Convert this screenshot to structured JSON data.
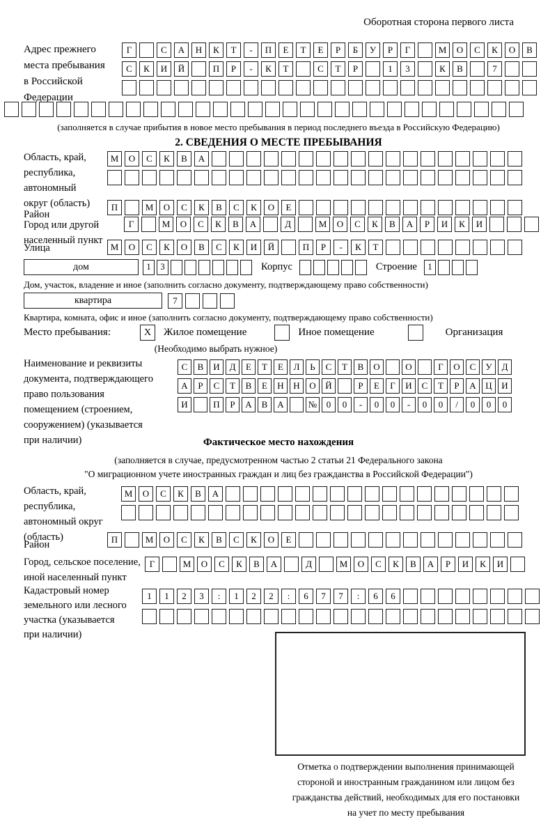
{
  "page": {
    "header_note": "Оборотная сторона первого листа"
  },
  "prev_address": {
    "label_lines": [
      "Адрес прежнего",
      "места пребывания",
      "в Российской",
      "Федерации"
    ],
    "rows": [
      "Г САНКТ-ПЕТЕРБУРГ МОСКОВ",
      "СКИЙ ПР-КТ СТР 13 КВ 7  ",
      "                        "
    ],
    "overflow_row": "                              ",
    "footnote": "(заполняется в случае прибытия в новое место пребывания в период последнего въезда в Российскую Федерацию)"
  },
  "section2": {
    "title": "2. СВЕДЕНИЯ О МЕСТЕ ПРЕБЫВАНИЯ",
    "oblast": {
      "label_lines": [
        "Область, край,",
        "республика,",
        "автономный",
        "округ (область)"
      ],
      "rows": [
        "МОСКВА                  ",
        "                        "
      ]
    },
    "raion": {
      "label": "Район",
      "row": "П МОСКВСКОЕ             "
    },
    "gorod": {
      "label_lines": [
        "Город или другой",
        "населенный пункт"
      ],
      "row": "Г МОСКВА Д МОСКВАРИКИ   "
    },
    "ulitsa": {
      "label": "Улица",
      "row": "МОСКОВСКИЙ ПР-КТ        "
    },
    "dom": {
      "box_label": "дом",
      "cells": "13      ",
      "korpus_label": "Корпус",
      "korpus_cells": "     ",
      "stroenie_label": "Строение",
      "stroenie_cells": "1   ",
      "caption": "Дом, участок, владение и иное (заполнить согласно документу, подтверждающему право собственности)"
    },
    "kvartira": {
      "box_label": "квартира",
      "cells": "7   ",
      "caption": "Квартира, комната, офис и иное (заполнить согласно документу, подтверждающему право собственности)"
    },
    "stay_type": {
      "label": "Место пребывания:",
      "options": [
        {
          "label": "Жилое помещение",
          "mark": "X"
        },
        {
          "label": "Иное помещение",
          "mark": ""
        },
        {
          "label": "Организация",
          "mark": ""
        }
      ],
      "hint": "(Необходимо выбрать нужное)"
    },
    "doc": {
      "label_lines": [
        "Наименование и реквизиты",
        "документа, подтверждающего",
        "право пользования",
        "помещением (строением,",
        "сооружением) (указывается",
        "при наличии)"
      ],
      "rows": [
        "СВИДЕТЕЛЬСТВО О ГОСУД",
        "АРСТВЕННОЙ РЕГИСТРАЦИ",
        "И ПРАВА №00-00-00/000"
      ]
    }
  },
  "fact": {
    "title": "Фактическое место нахождения",
    "note_lines": [
      "(заполняется в случае, предусмотренном частью 2 статьи 21 Федерального закона",
      "\"О миграционном учете иностранных граждан и лиц без гражданства в Российской Федерации\")"
    ],
    "oblast": {
      "label_lines": [
        "Область, край,",
        "республика,",
        "автономный округ",
        "(область)"
      ],
      "rows": [
        "МОСКВА                 ",
        "                       "
      ]
    },
    "raion": {
      "label": "Район",
      "row": "П МОСКВСКОЕ             "
    },
    "gorod": {
      "label_lines": [
        "Город, сельское поселение,",
        "иной населенный пункт"
      ],
      "row": "Г МОСКВА Д МОСКВАРИКИ "
    },
    "kadastr": {
      "label_lines": [
        "Кадастровый номер",
        "земельного или лесного",
        "участка (указывается",
        "при наличии)"
      ],
      "rows": [
        "1123:122:677:66        ",
        "                       "
      ]
    },
    "stamp_caption_lines": [
      "Отметка о подтверждении выполнения принимающей",
      "стороной и иностранным гражданином или лицом без",
      "гражданства действий, необходимых для его постановки",
      "на учет по месту пребывания"
    ]
  }
}
